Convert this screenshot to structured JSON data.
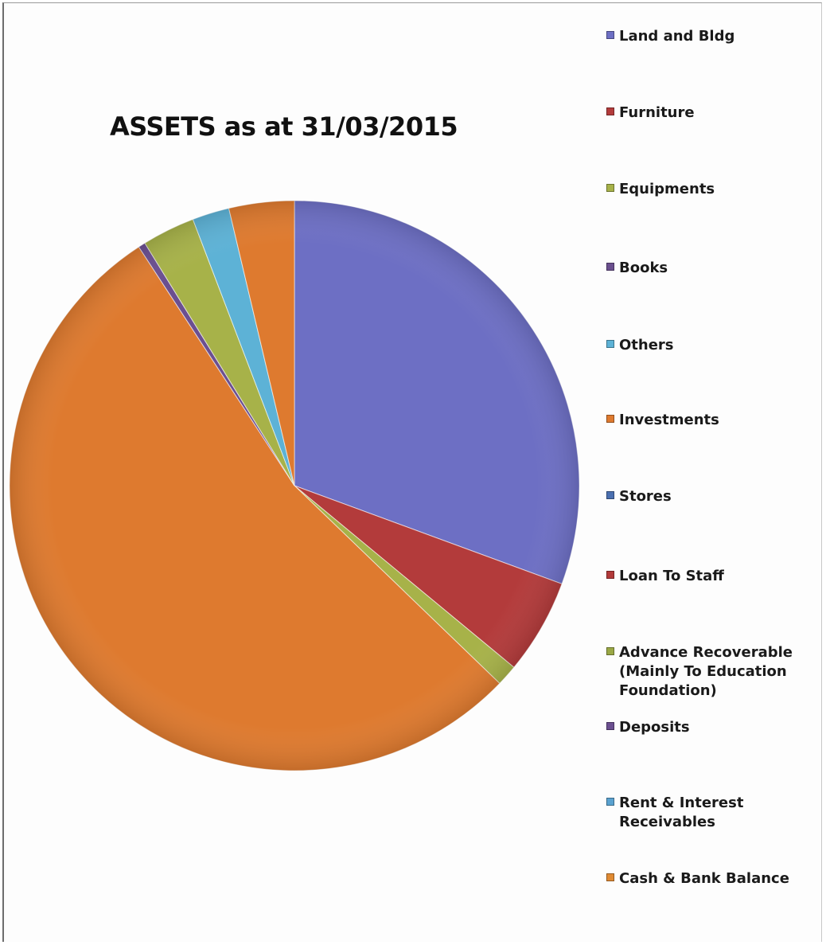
{
  "chart_data": {
    "type": "pie",
    "title": "ASSETS as at 31/03/2015",
    "legend_position": "right",
    "start_angle_note": "clockwise from 12 o'clock",
    "slices": [
      {
        "label": "Land and Bldg",
        "value": 30.6,
        "color": "#6d6fc4"
      },
      {
        "label": "Furniture",
        "value": 5.3,
        "color": "#b33b3b"
      },
      {
        "label": "Equipments",
        "value": 1.2,
        "color": "#a7b249"
      },
      {
        "label": "Books",
        "value": 0.0,
        "color": "#6a4f8e"
      },
      {
        "label": "Others",
        "value": 0.0,
        "color": "#5db2d6"
      },
      {
        "label": "Investments",
        "value": 53.8,
        "color": "#de7a2f"
      },
      {
        "label": "Stores",
        "value": 0.0,
        "color": "#4a6fb0"
      },
      {
        "label": "Loan To Staff",
        "value": 0.0,
        "color": "#b23a3a"
      },
      {
        "label": "Advance Recoverable\n(Mainly To Education\nFoundation)",
        "value": 0.4,
        "color": "#9aa845"
      },
      {
        "label": "Deposits",
        "value": 0.0,
        "color": "#6b4f90"
      },
      {
        "label": "Rent & Interest\nReceivables",
        "value": 0.0,
        "color": "#5aa2d0"
      },
      {
        "label": "Cash & Bank Balance",
        "value": 0.0,
        "color": "#e08a33"
      }
    ]
  },
  "extra_slices": [
    {
      "label": "Equipments",
      "value": 3.0,
      "color": "#a7b249"
    },
    {
      "label": "Others",
      "value": 2.1,
      "color": "#5db2d6"
    },
    {
      "label": "Investments",
      "value": 3.6,
      "color": "#de7a2f"
    }
  ]
}
